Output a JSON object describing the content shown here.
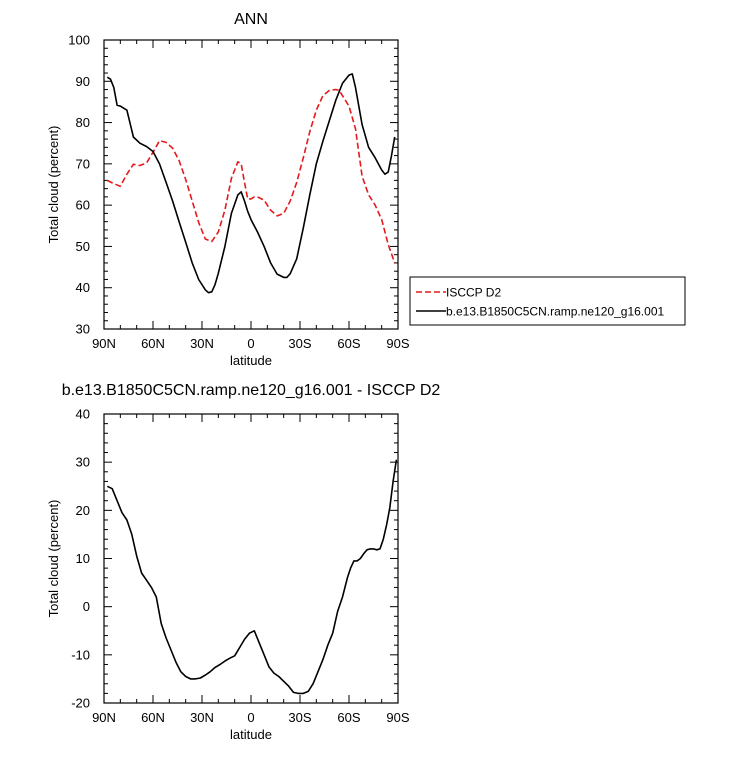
{
  "chart_data": [
    {
      "type": "line",
      "title": "ANN",
      "xlabel": "latitude",
      "ylabel": "Total cloud (percent)",
      "xlim": [
        90,
        -90
      ],
      "ylim": [
        30,
        100
      ],
      "yticks": [
        30,
        40,
        50,
        60,
        70,
        80,
        90,
        100
      ],
      "xticks": [
        90,
        60,
        30,
        0,
        -30,
        -60,
        -90
      ],
      "xtick_labels": [
        "90N",
        "60N",
        "30N",
        "0",
        "30S",
        "60S",
        "90S"
      ],
      "legend": {
        "placement": "outside-right",
        "entries": [
          "ISCCP D2",
          "b.e13.B1850C5CN.ramp.ne120_g16.001"
        ]
      },
      "series": [
        {
          "name": "ISCCP D2",
          "color": "#e41a1c",
          "dash": "dashed",
          "x": [
            88,
            84,
            80,
            76,
            72,
            68,
            64,
            60,
            56,
            52,
            48,
            44,
            40,
            36,
            32,
            28,
            24,
            20,
            16,
            12,
            8,
            6,
            4,
            2,
            0,
            -2,
            -4,
            -8,
            -12,
            -16,
            -20,
            -24,
            -28,
            -32,
            -36,
            -40,
            -44,
            -48,
            -52,
            -54,
            -56,
            -60,
            -64,
            -68,
            -72,
            -76,
            -80,
            -84,
            -88
          ],
          "y": [
            66,
            65.2,
            64.6,
            67.5,
            69.9,
            69.6,
            70.2,
            72.8,
            75.6,
            75.2,
            73.8,
            70.8,
            66.2,
            61,
            55.8,
            51.8,
            51.2,
            53.5,
            58.8,
            66.5,
            70.5,
            70,
            65.5,
            61.5,
            61.5,
            62,
            62,
            61.2,
            58.8,
            57.4,
            58,
            61,
            65.5,
            71.5,
            77.8,
            83,
            86.5,
            87.8,
            88,
            87.8,
            86.5,
            84,
            78.5,
            67,
            62.5,
            60,
            56.5,
            50.5,
            46
          ]
        },
        {
          "name": "b.e13.B1850C5CN.ramp.ne120_g16.001",
          "color": "#000000",
          "dash": "solid",
          "x": [
            88,
            86,
            84,
            82,
            80,
            76,
            72,
            68,
            64,
            60,
            56,
            52,
            48,
            44,
            40,
            36,
            32,
            28,
            26,
            24,
            22,
            20,
            16,
            12,
            8,
            6,
            4,
            2,
            0,
            -4,
            -8,
            -12,
            -16,
            -20,
            -22,
            -24,
            -28,
            -32,
            -36,
            -40,
            -44,
            -48,
            -52,
            -56,
            -60,
            -62,
            -64,
            -68,
            -72,
            -76,
            -80,
            -82,
            -84,
            -86,
            -88
          ],
          "y": [
            91,
            90.5,
            88.5,
            84.2,
            84,
            83,
            76.5,
            75,
            74.2,
            73,
            70,
            65.5,
            61,
            56,
            51,
            46,
            42,
            39.5,
            38.8,
            39,
            40.8,
            43.5,
            50,
            58,
            62.5,
            63.2,
            61,
            58.5,
            56.5,
            53.5,
            50,
            46,
            43.3,
            42.5,
            42.5,
            43.4,
            47,
            54.5,
            62.5,
            70,
            75.5,
            80.5,
            85.5,
            89.5,
            91.5,
            91.8,
            88.5,
            79.5,
            74,
            71.5,
            68.5,
            67.5,
            68,
            72,
            76.5
          ]
        }
      ]
    },
    {
      "type": "line",
      "title": "b.e13.B1850C5CN.ramp.ne120_g16.001 - ISCCP D2",
      "xlabel": "latitude",
      "ylabel": "Total cloud (percent)",
      "xlim": [
        90,
        -90
      ],
      "ylim": [
        -20,
        40
      ],
      "yticks": [
        -20,
        -10,
        0,
        10,
        20,
        30,
        40
      ],
      "xticks": [
        90,
        60,
        30,
        0,
        -30,
        -60,
        -90
      ],
      "xtick_labels": [
        "90N",
        "60N",
        "30N",
        "0",
        "30S",
        "60S",
        "90S"
      ],
      "series": [
        {
          "color": "#000000",
          "dash": "solid",
          "x": [
            88,
            85,
            82,
            79,
            76,
            73,
            70,
            67,
            64,
            61,
            58,
            55,
            52,
            49,
            46,
            43,
            40,
            37,
            34,
            31,
            28,
            25,
            22,
            19,
            16,
            13,
            10,
            7,
            4,
            1,
            -2,
            -5,
            -8,
            -11,
            -14,
            -17,
            -20,
            -23,
            -26,
            -29,
            -32,
            -35,
            -38,
            -41,
            -44,
            -47,
            -50,
            -53,
            -56,
            -59,
            -61,
            -63,
            -65,
            -67,
            -69,
            -71,
            -73,
            -75,
            -77,
            -79,
            -81,
            -83,
            -85,
            -87,
            -89
          ],
          "y": [
            25,
            24.5,
            22,
            19.5,
            18,
            15,
            10.5,
            7,
            5.5,
            4,
            2,
            -3.5,
            -6.5,
            -9,
            -11.5,
            -13.5,
            -14.5,
            -15,
            -15,
            -14.8,
            -14.2,
            -13.5,
            -12.6,
            -12,
            -11.3,
            -10.7,
            -10.2,
            -8.5,
            -6.8,
            -5.5,
            -5,
            -7.5,
            -10,
            -12.5,
            -13.8,
            -14.5,
            -15.5,
            -16.5,
            -17.8,
            -18,
            -18,
            -17.6,
            -16,
            -13.5,
            -11,
            -8,
            -5.5,
            -1,
            2,
            6,
            8,
            9.5,
            9.5,
            10,
            11,
            11.8,
            12,
            12,
            11.8,
            12,
            14,
            17,
            20.5,
            26,
            30.5
          ]
        }
      ]
    }
  ]
}
